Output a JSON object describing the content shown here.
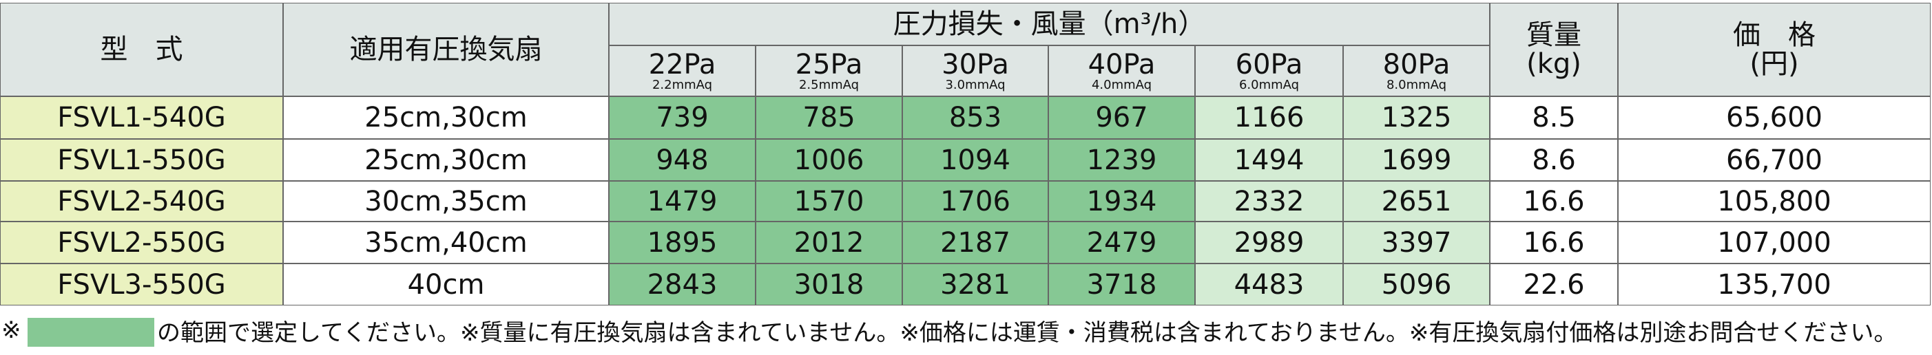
{
  "header": {
    "model": "型　式",
    "fan": "適用有圧換気扇",
    "pressure": "圧力損失・風量（m³/h）",
    "mass": [
      "質量",
      "(kg)"
    ],
    "price": [
      "価　格",
      "(円)"
    ]
  },
  "pressure_columns": [
    {
      "pa": "22Pa",
      "aq": "2.2mmAq"
    },
    {
      "pa": "25Pa",
      "aq": "2.5mmAq"
    },
    {
      "pa": "30Pa",
      "aq": "3.0mmAq"
    },
    {
      "pa": "40Pa",
      "aq": "4.0mmAq"
    },
    {
      "pa": "60Pa",
      "aq": "6.0mmAq"
    },
    {
      "pa": "80Pa",
      "aq": "8.0mmAq"
    }
  ],
  "rows": [
    [
      "FSVL1-540G",
      "25cm,30cm",
      "739",
      "785",
      "853",
      "967",
      "1166",
      "1325",
      "8.5",
      "65,600"
    ],
    [
      "FSVL1-550G",
      "25cm,30cm",
      "948",
      "1006",
      "1094",
      "1239",
      "1494",
      "1699",
      "8.6",
      "66,700"
    ],
    [
      "FSVL2-540G",
      "30cm,35cm",
      "1479",
      "1570",
      "1706",
      "1934",
      "2332",
      "2651",
      "16.6",
      "105,800"
    ],
    [
      "FSVL2-550G",
      "35cm,40cm",
      "1895",
      "2012",
      "2187",
      "2479",
      "2989",
      "3397",
      "16.6",
      "107,000"
    ],
    [
      "FSVL3-550G",
      "40cm",
      "2843",
      "3018",
      "3281",
      "3718",
      "4483",
      "5096",
      "22.6",
      "135,700"
    ]
  ],
  "footer": {
    "mark": "※",
    "note": "の範囲で選定してください。※質量に有圧換気扇は含まれていません。※価格には運賃・消費税は含まれておりません。※有圧換気扇付価格は別途お問合せください。"
  }
}
